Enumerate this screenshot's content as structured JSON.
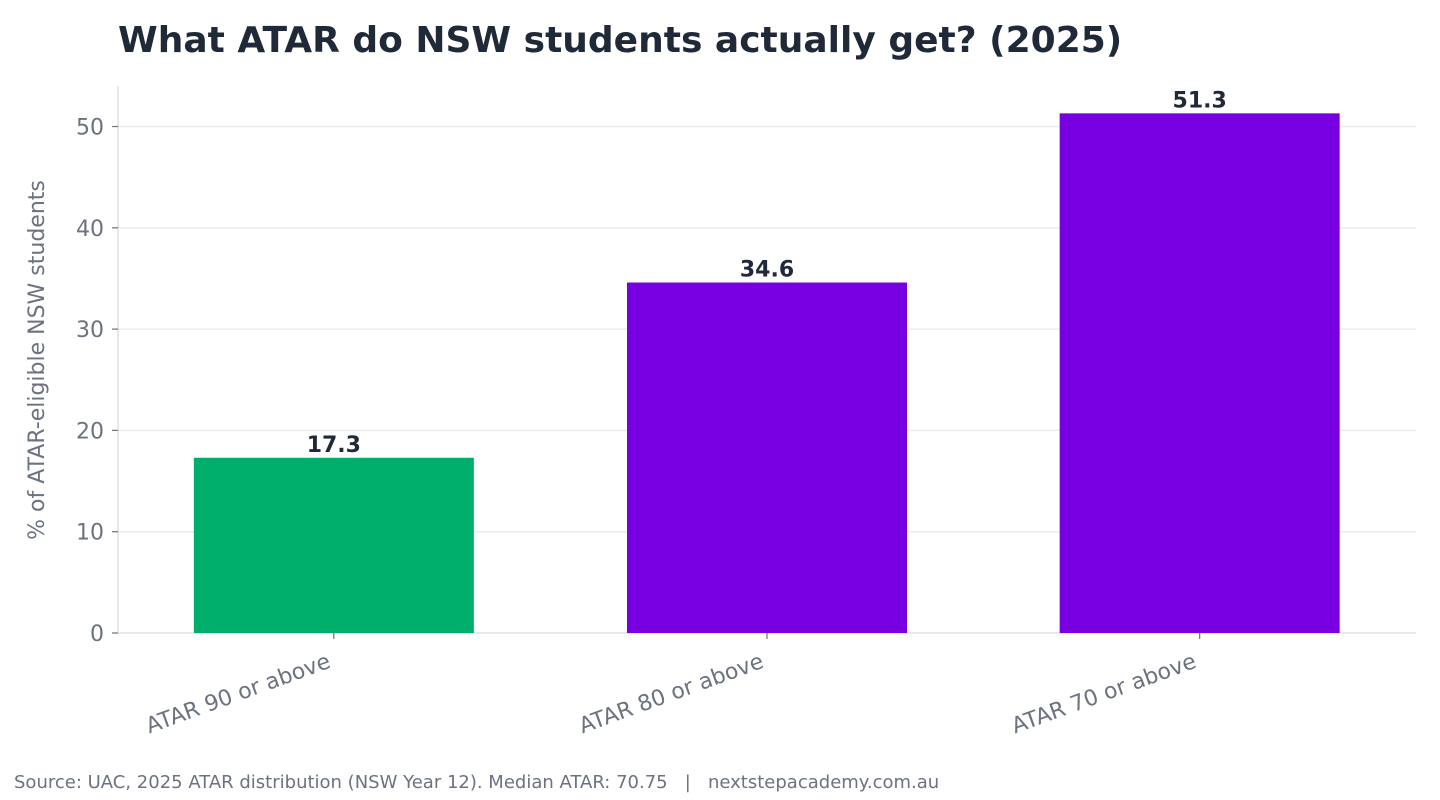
{
  "colors": {
    "highlight": "#00ae6b",
    "primary": "#7800e0",
    "text_dark": "#1f2937",
    "text_muted": "#6b7280",
    "grid": "#ebebeb",
    "axis": "#e0e0e0"
  },
  "chart_data": {
    "type": "bar",
    "title": "What ATAR do NSW students actually get? (2025)",
    "xlabel": "",
    "ylabel": "% of ATAR-eligible NSW students",
    "categories": [
      "ATAR 90 or above",
      "ATAR 80 or above",
      "ATAR 70 or above"
    ],
    "values": [
      17.3,
      34.6,
      51.3
    ],
    "value_labels": [
      "17.3",
      "34.6",
      "51.3"
    ],
    "bar_colors": [
      "#00ae6b",
      "#7800e0",
      "#7800e0"
    ],
    "ylim": [
      0,
      54
    ],
    "yticks": [
      0,
      10,
      20,
      30,
      40,
      50
    ],
    "grid": true,
    "legend": "none"
  },
  "footer": {
    "source": "Source: UAC, 2025 ATAR distribution (NSW Year 12). Median ATAR: 70.75   |   nextstepacademy.com.au"
  }
}
